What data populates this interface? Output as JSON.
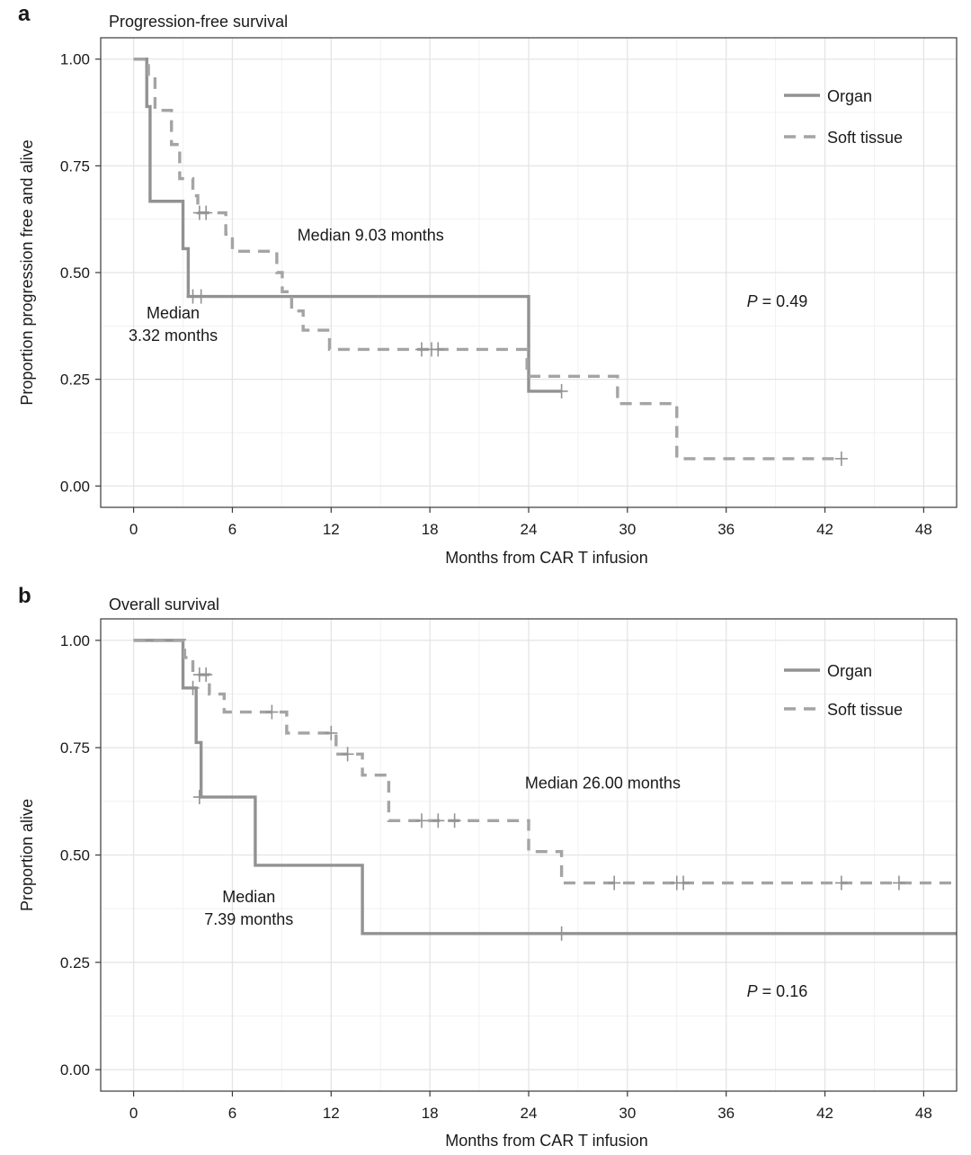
{
  "chart_data": [
    {
      "type": "line",
      "step": true,
      "panel_letter": "a",
      "title": "Progression-free survival",
      "xlabel": "Months from CAR T infusion",
      "ylabel": "Proportion progression free and alive",
      "xlim": [
        -2,
        50
      ],
      "ylim": [
        -0.05,
        1.05
      ],
      "xticks": [
        0,
        6,
        12,
        18,
        24,
        30,
        36,
        42,
        48
      ],
      "yticks": [
        0.0,
        0.25,
        0.5,
        0.75,
        1.0
      ],
      "ytick_labels": [
        "0.00",
        "0.25",
        "0.50",
        "0.75",
        "1.00"
      ],
      "legend": [
        "Organ",
        "Soft tissue"
      ],
      "legend_position": "top-right",
      "series": [
        {
          "name": "Organ",
          "style": "solid",
          "steps": [
            [
              0,
              1.0
            ],
            [
              0.8,
              0.889
            ],
            [
              1.0,
              0.667
            ],
            [
              3.0,
              0.556
            ],
            [
              3.32,
              0.444
            ],
            [
              24.0,
              0.222
            ]
          ],
          "end_x": 26.0,
          "censored": [
            [
              3.6,
              0.444
            ],
            [
              4.1,
              0.444
            ],
            [
              26.0,
              0.222
            ]
          ]
        },
        {
          "name": "Soft tissue",
          "style": "dashed",
          "steps": [
            [
              0,
              1.0
            ],
            [
              0.9,
              0.96
            ],
            [
              1.3,
              0.88
            ],
            [
              2.3,
              0.8
            ],
            [
              2.8,
              0.72
            ],
            [
              3.6,
              0.68
            ],
            [
              3.9,
              0.64
            ],
            [
              5.6,
              0.59
            ],
            [
              6.0,
              0.55
            ],
            [
              8.7,
              0.5
            ],
            [
              9.03,
              0.455
            ],
            [
              9.6,
              0.41
            ],
            [
              10.3,
              0.365
            ],
            [
              11.9,
              0.32
            ],
            [
              23.9,
              0.257
            ],
            [
              29.4,
              0.193
            ],
            [
              33.0,
              0.064
            ]
          ],
          "end_x": 43.0,
          "censored": [
            [
              4.0,
              0.64
            ],
            [
              4.4,
              0.64
            ],
            [
              17.5,
              0.32
            ],
            [
              18.1,
              0.32
            ],
            [
              18.5,
              0.32
            ],
            [
              43.0,
              0.064
            ]
          ]
        }
      ],
      "annotations": [
        {
          "lines": [
            "Median 9.03 months"
          ],
          "x": 14.4,
          "y": 0.575,
          "anchor": "middle"
        },
        {
          "lines": [
            "Median",
            "3.32 months"
          ],
          "x": 2.4,
          "y": 0.393,
          "anchor": "middle"
        },
        {
          "lines": [
            "P = 0.49"
          ],
          "x": 39.1,
          "y": 0.42,
          "anchor": "middle",
          "italic_prefix": "P"
        }
      ]
    },
    {
      "type": "line",
      "step": true,
      "panel_letter": "b",
      "title": "Overall survival",
      "xlabel": "Months from CAR T infusion",
      "ylabel": "Proportion alive",
      "xlim": [
        -2,
        50
      ],
      "ylim": [
        -0.05,
        1.05
      ],
      "xticks": [
        0,
        6,
        12,
        18,
        24,
        30,
        36,
        42,
        48
      ],
      "yticks": [
        0.0,
        0.25,
        0.5,
        0.75,
        1.0
      ],
      "ytick_labels": [
        "0.00",
        "0.25",
        "0.50",
        "0.75",
        "1.00"
      ],
      "legend": [
        "Organ",
        "Soft tissue"
      ],
      "legend_position": "top-right",
      "series": [
        {
          "name": "Organ",
          "style": "solid",
          "steps": [
            [
              0,
              1.0
            ],
            [
              3.0,
              0.889
            ],
            [
              3.8,
              0.762
            ],
            [
              4.1,
              0.635
            ],
            [
              7.39,
              0.476
            ],
            [
              13.9,
              0.317
            ]
          ],
          "end_x": 50,
          "censored": [
            [
              3.6,
              0.889
            ],
            [
              4.0,
              0.635
            ],
            [
              26.0,
              0.317
            ]
          ]
        },
        {
          "name": "Soft tissue",
          "style": "dashed",
          "steps": [
            [
              0,
              1.0
            ],
            [
              3.1,
              0.96
            ],
            [
              3.6,
              0.92
            ],
            [
              4.6,
              0.875
            ],
            [
              5.5,
              0.833
            ],
            [
              9.3,
              0.784
            ],
            [
              12.3,
              0.735
            ],
            [
              13.9,
              0.686
            ],
            [
              15.5,
              0.58
            ],
            [
              24.0,
              0.508
            ],
            [
              26.0,
              0.435
            ]
          ],
          "end_x": 50,
          "censored": [
            [
              4.0,
              0.92
            ],
            [
              4.4,
              0.92
            ],
            [
              8.4,
              0.833
            ],
            [
              12.0,
              0.784
            ],
            [
              13.0,
              0.735
            ],
            [
              17.5,
              0.58
            ],
            [
              18.5,
              0.58
            ],
            [
              19.5,
              0.58
            ],
            [
              29.2,
              0.435
            ],
            [
              33.0,
              0.435
            ],
            [
              33.4,
              0.435
            ],
            [
              43.0,
              0.435
            ],
            [
              46.5,
              0.435
            ]
          ]
        }
      ],
      "annotations": [
        {
          "lines": [
            "Median  26.00 months"
          ],
          "x": 28.5,
          "y": 0.655,
          "anchor": "middle"
        },
        {
          "lines": [
            "Median",
            "7.39  months"
          ],
          "x": 7.0,
          "y": 0.39,
          "anchor": "middle"
        },
        {
          "lines": [
            "P = 0.16"
          ],
          "x": 39.1,
          "y": 0.17,
          "anchor": "middle",
          "italic_prefix": "P"
        }
      ]
    }
  ]
}
